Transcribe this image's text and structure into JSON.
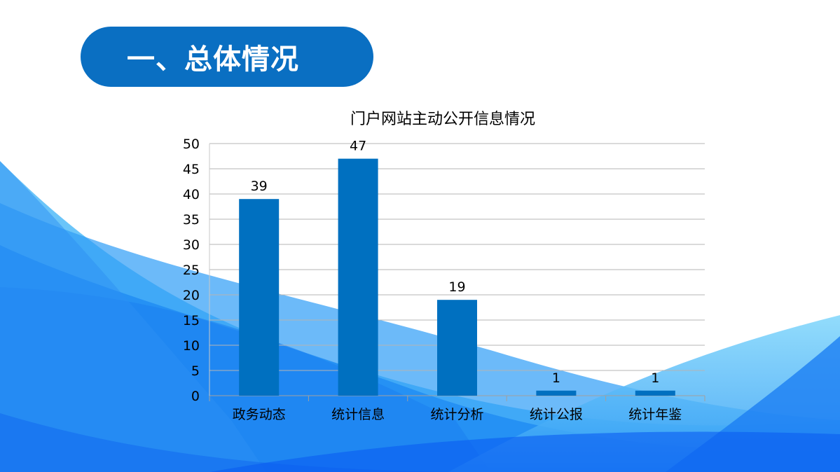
{
  "header": {
    "title": "一、总体情况"
  },
  "colors": {
    "bar": "#0070c0",
    "pill": "#0a6fc2",
    "grid": "#b4b4b4"
  },
  "chart_data": {
    "type": "bar",
    "title": "门户网站主动公开信息情况",
    "categories": [
      "政务动态",
      "统计信息",
      "统计分析",
      "统计公报",
      "统计年鉴"
    ],
    "values": [
      39,
      47,
      19,
      1,
      1
    ],
    "xlabel": "",
    "ylabel": "",
    "ylim": [
      0,
      50
    ],
    "yticks": [
      0,
      5,
      10,
      15,
      20,
      25,
      30,
      35,
      40,
      45,
      50
    ],
    "grid": true,
    "legend": "none",
    "data_labels": true
  }
}
